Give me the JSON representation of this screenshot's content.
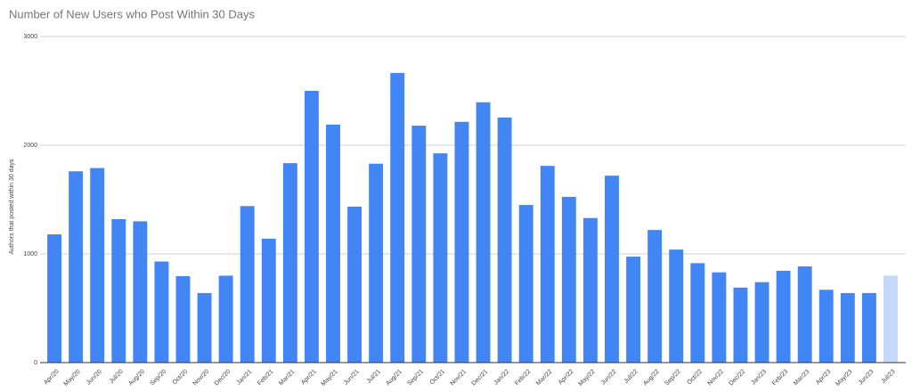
{
  "chart_data": {
    "type": "bar",
    "title": "Number of New Users who Post Within 30 Days",
    "y_label": "Authors that posted within 30 days",
    "categories": [
      "Apr/20",
      "May/20",
      "Jun/20",
      "Jul/20",
      "Aug/20",
      "Sep/20",
      "Oct/20",
      "Nov/20",
      "Dec/20",
      "Jan/21",
      "Feb/21",
      "Mar/21",
      "Apr/21",
      "May/21",
      "Jun/21",
      "Jul/21",
      "Aug/21",
      "Sep/21",
      "Oct/21",
      "Nov/21",
      "Dec/21",
      "Jan/22",
      "Feb/22",
      "Mar/22",
      "Apr/22",
      "May/22",
      "Jun/22",
      "Jul/22",
      "Aug/22",
      "Sep/22",
      "Oct/22",
      "Nov/22",
      "Dec/22",
      "Jan/23",
      "Feb/23",
      "Mar/23",
      "Apr/23",
      "May/23",
      "Jun/23",
      "Jul/23"
    ],
    "values": [
      1180,
      1760,
      1790,
      1320,
      1300,
      930,
      795,
      640,
      800,
      1440,
      1140,
      1835,
      2500,
      2190,
      1435,
      1830,
      2665,
      2180,
      1925,
      2215,
      2395,
      2255,
      1450,
      1810,
      1525,
      1330,
      1720,
      975,
      1220,
      1040,
      915,
      830,
      690,
      740,
      845,
      885,
      670,
      640,
      640,
      800
    ],
    "colors": [
      "#4285f4",
      "#4285f4",
      "#4285f4",
      "#4285f4",
      "#4285f4",
      "#4285f4",
      "#4285f4",
      "#4285f4",
      "#4285f4",
      "#4285f4",
      "#4285f4",
      "#4285f4",
      "#4285f4",
      "#4285f4",
      "#4285f4",
      "#4285f4",
      "#4285f4",
      "#4285f4",
      "#4285f4",
      "#4285f4",
      "#4285f4",
      "#4285f4",
      "#4285f4",
      "#4285f4",
      "#4285f4",
      "#4285f4",
      "#4285f4",
      "#4285f4",
      "#4285f4",
      "#4285f4",
      "#4285f4",
      "#4285f4",
      "#4285f4",
      "#4285f4",
      "#4285f4",
      "#4285f4",
      "#4285f4",
      "#4285f4",
      "#4285f4",
      "#c6d8fb"
    ],
    "ylim": [
      0,
      3000
    ],
    "yticks": [
      0,
      1000,
      2000,
      3000
    ],
    "grid": true
  }
}
